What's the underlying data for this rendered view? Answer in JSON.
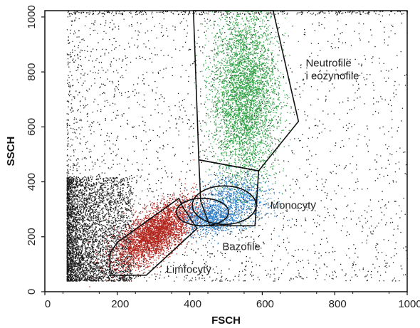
{
  "chart_data": {
    "type": "scatter",
    "title": "",
    "xlabel": "FSCH",
    "ylabel": "SSCH",
    "xlim": [
      0,
      1000
    ],
    "ylim": [
      0,
      1023
    ],
    "xticks": [
      0,
      200,
      400,
      600,
      800,
      1000
    ],
    "yticks": [
      0,
      200,
      400,
      600,
      800,
      1000
    ],
    "grid": false,
    "legend": "none",
    "series": [
      {
        "color": "#1a1a1a",
        "cloud": {
          "x_range": [
            60,
            1000
          ],
          "y_range": [
            40,
            1023
          ],
          "dense_core": {
            "x": [
              60,
              240
            ],
            "y": [
              40,
              420
            ]
          }
        }
      },
      {
        "name": "Limfocyty",
        "color": "#b3261e",
        "cloud": {
          "center": [
            305,
            215
          ],
          "spread": [
            55,
            45
          ]
        }
      },
      {
        "name": "Bazofile",
        "color": "#2f7ec8",
        "cloud": {
          "center": [
            455,
            270
          ],
          "spread": [
            35,
            30
          ]
        }
      },
      {
        "name": "Monocyty",
        "color": "#2f7ec8",
        "cloud": {
          "center": [
            530,
            340
          ],
          "spread": [
            45,
            45
          ]
        }
      },
      {
        "name": "Neutrofile i eozynofile",
        "color": "#2ea043",
        "cloud": {
          "center": [
            550,
            720
          ],
          "spread": [
            45,
            160
          ]
        }
      }
    ],
    "gates": [
      {
        "name": "Limfocyty",
        "shape": "polygon",
        "vertices": [
          [
            180,
            60
          ],
          [
            280,
            60
          ],
          [
            420,
            230
          ],
          [
            380,
            310
          ],
          [
            370,
            340
          ],
          [
            200,
            180
          ],
          [
            180,
            140
          ]
        ]
      },
      {
        "name": "Bazofile",
        "shape": "ellipse",
        "center": [
          435,
          290
        ],
        "radii": [
          72,
          50
        ]
      },
      {
        "name": "Monocyty",
        "shape": "ellipse",
        "center": [
          495,
          315
        ],
        "radii": [
          88,
          70
        ]
      },
      {
        "name": "Monocyty",
        "shape": "polygon",
        "vertices": [
          [
            425,
            480
          ],
          [
            590,
            440
          ],
          [
            580,
            240
          ],
          [
            455,
            240
          ],
          [
            430,
            330
          ]
        ]
      },
      {
        "name": "Neutrofile i eozynofile",
        "shape": "polygon",
        "vertices": [
          [
            410,
            1023
          ],
          [
            630,
            1023
          ],
          [
            700,
            620
          ],
          [
            590,
            440
          ],
          [
            425,
            480
          ]
        ]
      }
    ],
    "annotations": [
      {
        "lines": [
          "Neutrofile",
          "i eozynofile"
        ],
        "x": 720,
        "y": 820
      },
      {
        "lines": [
          "Monocyty"
        ],
        "x": 622,
        "y": 302
      },
      {
        "lines": [
          "Bazofile"
        ],
        "x": 490,
        "y": 152
      },
      {
        "lines": [
          "Limfocyty"
        ],
        "x": 335,
        "y": 68
      }
    ]
  }
}
